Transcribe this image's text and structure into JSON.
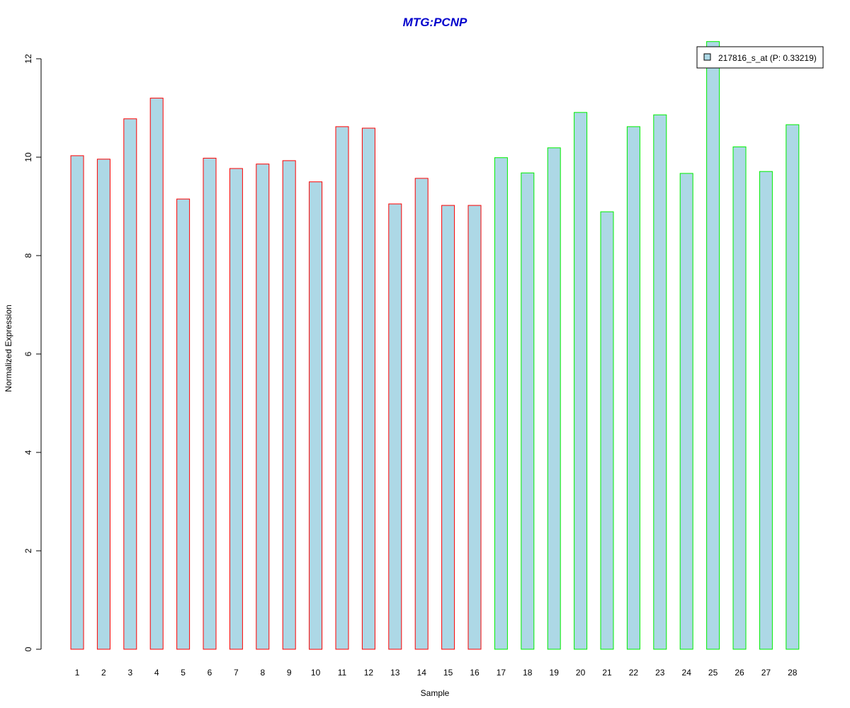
{
  "chart_data": {
    "type": "bar",
    "title": "MTG:PCNP",
    "xlabel": "Sample",
    "ylabel": "Normalized Expression",
    "categories": [
      "1",
      "2",
      "3",
      "4",
      "5",
      "6",
      "7",
      "8",
      "9",
      "10",
      "11",
      "12",
      "13",
      "14",
      "15",
      "16",
      "17",
      "18",
      "19",
      "20",
      "21",
      "22",
      "23",
      "24",
      "25",
      "26",
      "27",
      "28"
    ],
    "values": [
      10.03,
      9.96,
      10.78,
      11.2,
      9.15,
      9.98,
      9.77,
      9.86,
      9.93,
      9.5,
      10.62,
      10.59,
      9.05,
      9.57,
      9.02,
      9.02,
      9.99,
      9.68,
      10.19,
      10.91,
      8.89,
      10.62,
      10.86,
      9.67,
      12.35,
      10.21,
      9.71,
      10.66
    ],
    "groups": [
      {
        "samples": "1-16",
        "border_color": "#ff0000"
      },
      {
        "samples": "17-28",
        "border_color": "#00ee00"
      }
    ],
    "bar_fill": "#add8e6",
    "ylim": [
      0,
      12
    ],
    "yticks": [
      0,
      2,
      4,
      6,
      8,
      10,
      12
    ],
    "grid": false,
    "legend": {
      "position": "top-right",
      "label": "217816_s_at (P: 0.33219)",
      "swatch_color": "#add8e6"
    },
    "title_color": "#0000cc"
  }
}
